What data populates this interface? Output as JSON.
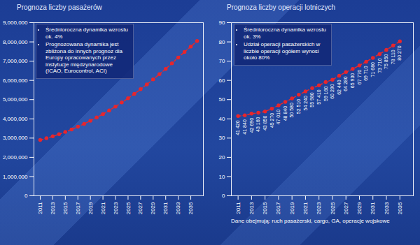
{
  "chart_data": [
    {
      "type": "line",
      "title": "Prognoza liczby pasażerów",
      "annotations": [
        "Średnioroczna dynamika wzrostu ok. 4%",
        "Prognozowana dynamika jest zbliżona do innych prognoz dla Europy opracowanych przez instytucje międzynarodowe (ICAO, Eurocontrol, ACI)"
      ],
      "x": [
        2011,
        2012,
        2013,
        2014,
        2015,
        2016,
        2017,
        2018,
        2019,
        2020,
        2021,
        2022,
        2023,
        2024,
        2025,
        2026,
        2027,
        2028,
        2029,
        2030,
        2031,
        2032,
        2033,
        2034,
        2035,
        2036
      ],
      "values": [
        2900000,
        2990000,
        3090000,
        3200000,
        3320000,
        3450000,
        3590000,
        3740000,
        3900000,
        4070000,
        4250000,
        4440000,
        4640000,
        4850000,
        5070000,
        5300000,
        5540000,
        5790000,
        6050000,
        6320000,
        6600000,
        6890000,
        7190000,
        7480000,
        7760000,
        8050000
      ],
      "color": "#e8262c",
      "marker": "circle",
      "line_style": "dashed",
      "xlim": [
        2010,
        2037
      ],
      "xticks": [
        2011,
        2013,
        2015,
        2017,
        2019,
        2021,
        2023,
        2025,
        2027,
        2029,
        2031,
        2033,
        2035
      ],
      "ylim": [
        0,
        9000000
      ],
      "yticks": [
        0,
        {
          "value": 1000000,
          "label": "1,000,000"
        },
        {
          "value": 2000000,
          "label": "2,000,000"
        },
        {
          "value": 3000000,
          "label": "3,000,000"
        },
        {
          "value": 4000000,
          "label": "4,000,000"
        },
        {
          "value": 5000000,
          "label": "5,000,000"
        },
        {
          "value": 6000000,
          "label": "6,000,000"
        },
        {
          "value": 7000000,
          "label": "7,000,000"
        },
        {
          "value": 8000000,
          "label": "8,000,000"
        },
        {
          "value": 9000000,
          "label": "9,000,000"
        }
      ],
      "grid": false
    },
    {
      "type": "line",
      "title": "Prognoza liczby operacji lotniczych",
      "annotations": [
        "Średnioroczna dynamika wzrostu ok. 3%",
        "Udział operacji pasażerskich w liczbie operacji ogółem wynosi około 80%"
      ],
      "caption": "Dane obejmują: ruch pasażerski, cargo, GA, operacje wojskowe",
      "x": [
        2011,
        2012,
        2013,
        2014,
        2015,
        2016,
        2017,
        2018,
        2019,
        2020,
        2021,
        2022,
        2023,
        2024,
        2025,
        2026,
        2027,
        2028,
        2029,
        2030,
        2031,
        2032,
        2033,
        2034,
        2035
      ],
      "values": [
        41.42,
        41.84,
        42.69,
        43.16,
        43.85,
        45.27,
        47.01,
        48.84,
        50.58,
        52.51,
        54.24,
        55.98,
        57.41,
        59.16,
        60.29,
        62.44,
        64.28,
        65.93,
        67.77,
        69.71,
        71.68,
        73.71,
        75.85,
        78.11,
        80.27
      ],
      "value_labels": [
        "41 420",
        "41 840",
        "42 690",
        "43 160",
        "43 850",
        "45 270",
        "47 010",
        "48 840",
        "50 580",
        "52 510",
        "54 240",
        "55 980",
        "57 410",
        "59 160",
        "60 290",
        "62 440",
        "64 280",
        "65 930",
        "67 770",
        "69 710",
        "71 680",
        "73 710",
        "75 850",
        "78 110",
        "80 270"
      ],
      "data_labels": true,
      "color": "#e8262c",
      "marker": "circle",
      "line_style": "dashed",
      "xlim": [
        2010,
        2037
      ],
      "xticks": [
        2011,
        2013,
        2015,
        2017,
        2019,
        2021,
        2023,
        2025,
        2027,
        2029,
        2031,
        2033,
        2035
      ],
      "ylim": [
        0,
        90
      ],
      "yticks": [
        0,
        10,
        20,
        30,
        40,
        50,
        60,
        70,
        80,
        90
      ],
      "grid": false
    }
  ]
}
